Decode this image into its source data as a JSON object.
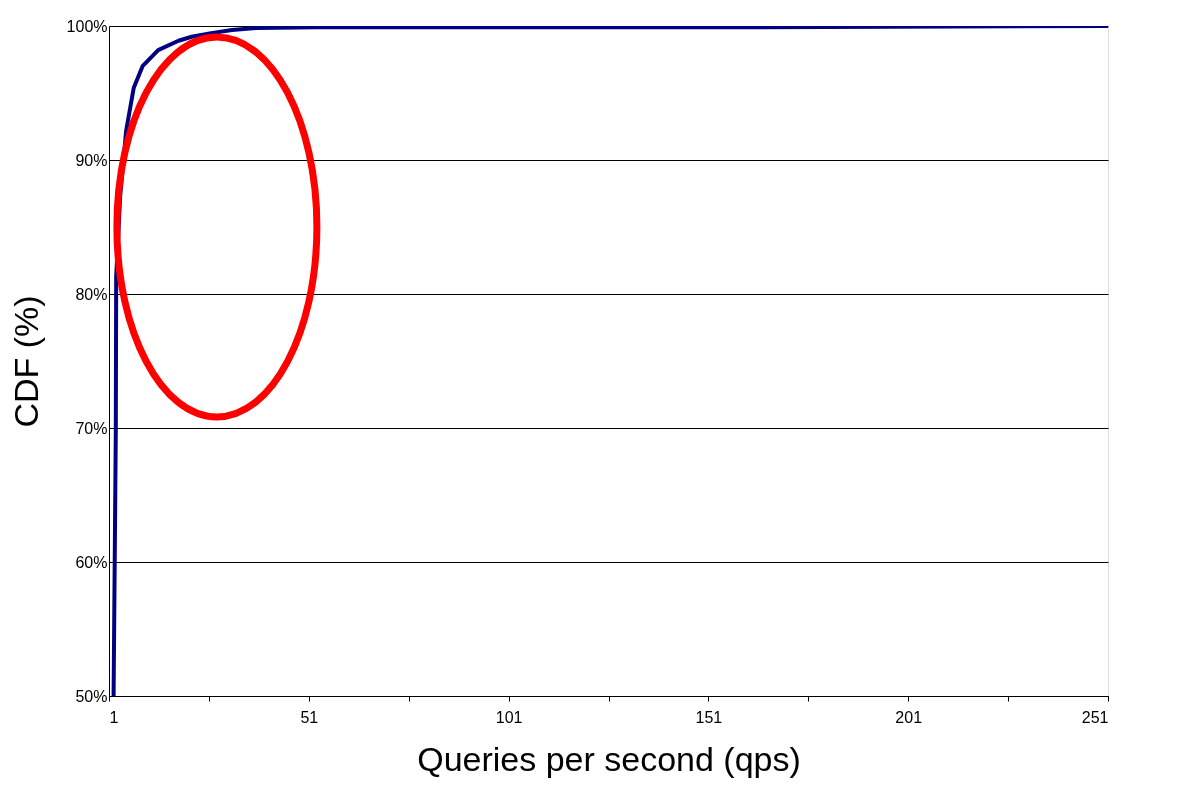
{
  "chart_data": {
    "type": "line",
    "xlabel": "Queries per second (qps)",
    "ylabel": "CDF (%)",
    "x": [
      2.15,
      2.7,
      2.8,
      3.8,
      5.3,
      7.2,
      9.4,
      13.3,
      18.4,
      21.7,
      26.2,
      31.8,
      37.9,
      53,
      160,
      251
    ],
    "series": [
      {
        "color": "#000080",
        "values": [
          50,
          69.7,
          81.3,
          87.3,
          92.2,
          95.4,
          97.0,
          98.2,
          98.9,
          99.2,
          99.45,
          99.7,
          99.85,
          99.9,
          99.9,
          100
        ]
      }
    ],
    "xlim": [
      1,
      251
    ],
    "ylim": [
      50,
      100
    ],
    "xticks": [
      1,
      {
        "value": 26,
        "label": null
      },
      51,
      {
        "value": 76,
        "label": null
      },
      101,
      {
        "value": 126,
        "label": null
      },
      151,
      {
        "value": 176,
        "label": null
      },
      201,
      {
        "value": 226,
        "label": null
      },
      251
    ],
    "yticks": [
      {
        "value": 50,
        "label": "50%"
      },
      {
        "value": 60,
        "label": "60%"
      },
      {
        "value": 70,
        "label": "70%"
      },
      {
        "value": 80,
        "label": "80%"
      },
      {
        "value": 90,
        "label": "90%"
      },
      {
        "value": 100,
        "label": "100%"
      }
    ],
    "grid": "y",
    "marker": "none",
    "line_style": "solid"
  }
}
